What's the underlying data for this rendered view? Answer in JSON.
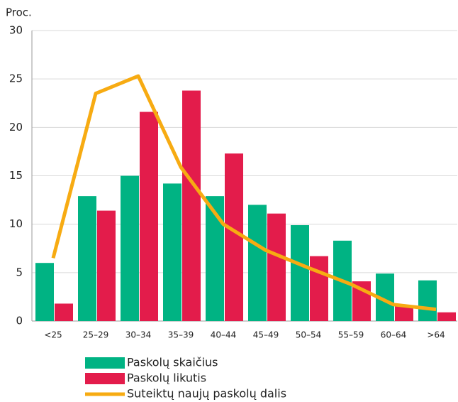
{
  "chart_data": {
    "type": "bar",
    "y_label": "Proc.",
    "categories": [
      "<25",
      "25–29",
      "30–34",
      "35–39",
      "40–44",
      "45–49",
      "50–54",
      "55–59",
      "60–64",
      ">64"
    ],
    "series": [
      {
        "name": "Paskolų skaičius",
        "type": "bar",
        "color": "#00b383",
        "values": [
          6.0,
          12.9,
          15.0,
          14.2,
          12.9,
          12.0,
          9.9,
          8.3,
          4.9,
          4.2
        ]
      },
      {
        "name": "Paskolų likutis",
        "type": "bar",
        "color": "#e31c4b",
        "values": [
          1.8,
          11.4,
          21.6,
          23.8,
          17.3,
          11.1,
          6.7,
          4.1,
          1.6,
          0.9
        ]
      },
      {
        "name": "Suteiktų naujų paskolų dalis",
        "type": "line",
        "color": "#f7ab12",
        "values": [
          6.5,
          23.5,
          25.3,
          15.9,
          10.0,
          7.3,
          5.5,
          3.8,
          1.7,
          1.2
        ]
      }
    ],
    "ylim": [
      0,
      30
    ],
    "yticks": [
      0,
      5,
      10,
      15,
      20,
      25,
      30
    ],
    "grid": true
  }
}
